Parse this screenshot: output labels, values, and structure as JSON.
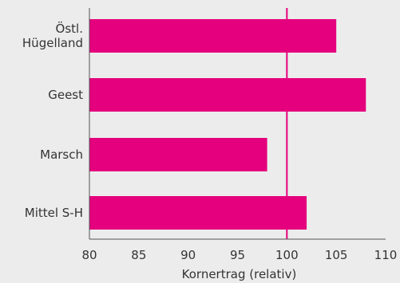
{
  "chart_data": {
    "type": "bar",
    "orientation": "horizontal",
    "categories": [
      [
        "Östl.",
        "Hügelland"
      ],
      [
        "Geest"
      ],
      [
        "Marsch"
      ],
      [
        "Mittel S-H"
      ]
    ],
    "values": [
      105,
      108,
      98,
      102
    ],
    "xlabel": "Kornertrag (relativ)",
    "xlim": [
      80,
      110
    ],
    "xticks": [
      80,
      85,
      90,
      95,
      100,
      105,
      110
    ],
    "reference_line": 100,
    "grid": false,
    "colors": {
      "bar": "#e5007d",
      "reference_line": "#e5007d",
      "background": "#ececec",
      "axis": "#555555",
      "text": "#333333"
    }
  }
}
